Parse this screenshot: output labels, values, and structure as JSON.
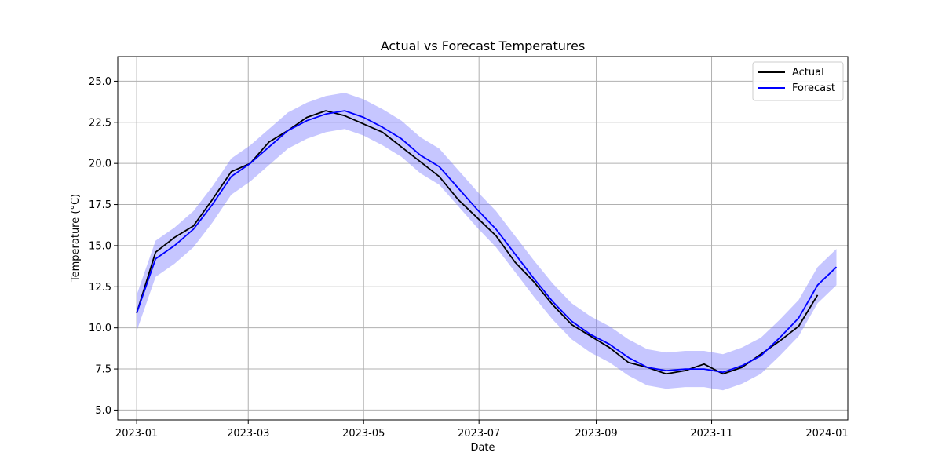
{
  "chart_data": {
    "type": "line",
    "title": "Actual vs Forecast Temperatures",
    "xlabel": "Date",
    "ylabel": "Temperature (°C)",
    "x_range": [
      "2022-12-22",
      "2024-01-12"
    ],
    "ylim": [
      4.4,
      26.5
    ],
    "x_ticks": [
      "2023-01",
      "2023-03",
      "2023-05",
      "2023-07",
      "2023-09",
      "2023-11",
      "2024-01"
    ],
    "y_ticks": [
      "5.0",
      "7.5",
      "10.0",
      "12.5",
      "15.0",
      "17.5",
      "20.0",
      "22.5",
      "25.0"
    ],
    "grid": true,
    "legend_position": "top-right",
    "colors": {
      "actual": "#000000",
      "forecast": "#0000ff",
      "band": "#8080ff",
      "grid": "#b0b0b0"
    },
    "x": [
      "2023-01-01",
      "2023-01-11",
      "2023-01-21",
      "2023-01-31",
      "2023-02-10",
      "2023-02-20",
      "2023-03-02",
      "2023-03-12",
      "2023-03-22",
      "2023-04-01",
      "2023-04-11",
      "2023-04-21",
      "2023-05-01",
      "2023-05-11",
      "2023-05-21",
      "2023-05-31",
      "2023-06-10",
      "2023-06-20",
      "2023-06-30",
      "2023-07-10",
      "2023-07-20",
      "2023-07-30",
      "2023-08-09",
      "2023-08-19",
      "2023-08-29",
      "2023-09-08",
      "2023-09-18",
      "2023-09-28",
      "2023-10-08",
      "2023-10-18",
      "2023-10-28",
      "2023-11-07",
      "2023-11-17",
      "2023-11-27",
      "2023-12-07",
      "2023-12-17",
      "2023-12-27",
      "2024-01-06"
    ],
    "series": [
      {
        "name": "Actual",
        "values": [
          10.9,
          14.6,
          15.5,
          16.2,
          17.8,
          19.5,
          20.0,
          21.3,
          22.0,
          22.8,
          23.2,
          22.9,
          22.4,
          21.9,
          21.0,
          20.1,
          19.2,
          17.8,
          16.7,
          15.6,
          14.0,
          12.8,
          11.4,
          10.2,
          9.5,
          8.8,
          7.9,
          7.6,
          7.2,
          7.4,
          7.8,
          7.2,
          7.6,
          8.4,
          9.2,
          10.1,
          12.0,
          null
        ]
      },
      {
        "name": "Forecast",
        "values": [
          10.9,
          14.2,
          15.0,
          16.0,
          17.5,
          19.2,
          20.0,
          21.0,
          22.0,
          22.6,
          23.0,
          23.2,
          22.8,
          22.2,
          21.5,
          20.5,
          19.8,
          18.5,
          17.2,
          16.0,
          14.5,
          13.0,
          11.6,
          10.4,
          9.6,
          9.0,
          8.2,
          7.6,
          7.4,
          7.5,
          7.5,
          7.3,
          7.7,
          8.3,
          9.4,
          10.6,
          12.6,
          13.7
        ]
      }
    ],
    "forecast_band_halfwidth": 1.1
  }
}
